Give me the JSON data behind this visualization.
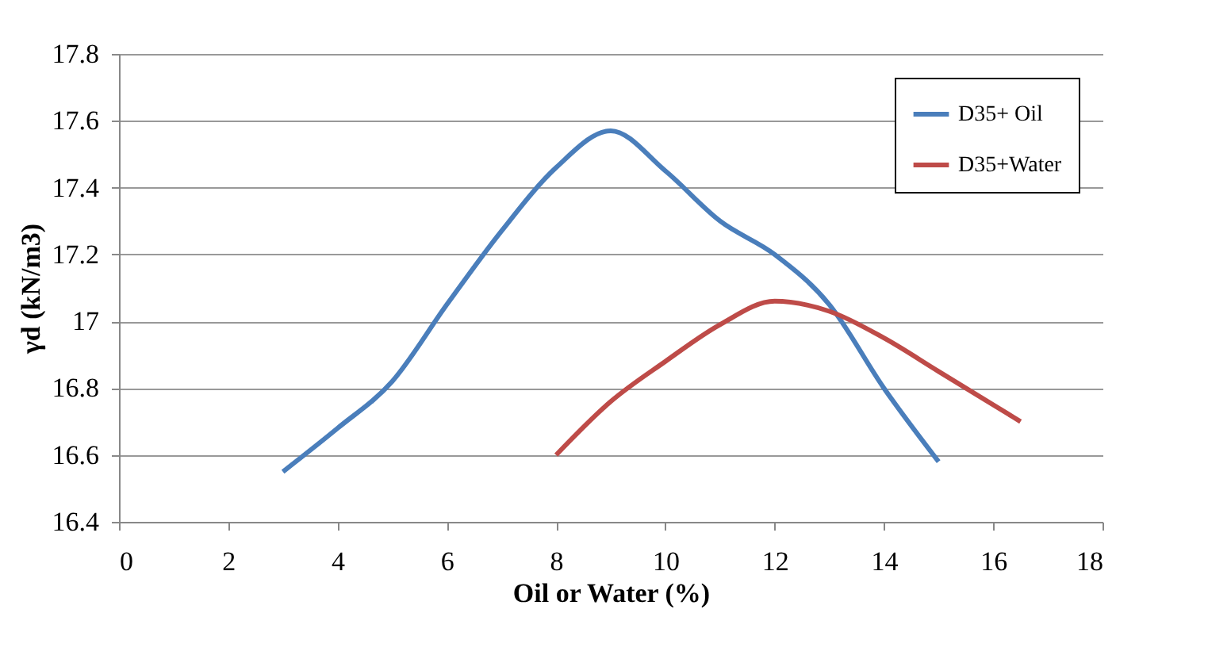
{
  "chart_data": {
    "type": "line",
    "xlabel": "Oil  or Water (%)",
    "ylabel": "γd (kN/m3)",
    "xlim": [
      0,
      18
    ],
    "xticks": [
      0,
      2,
      4,
      6,
      8,
      10,
      12,
      14,
      16,
      18
    ],
    "ylim": [
      16.4,
      17.8
    ],
    "yticks": [
      16.4,
      16.6,
      16.8,
      17,
      17.2,
      17.4,
      17.6,
      17.8
    ],
    "grid": "y",
    "legend": "top right",
    "marker": "none",
    "line_style": "solid",
    "series": [
      {
        "name": "D35+ Oil",
        "color": "#4a7ebb",
        "x": [
          3,
          4,
          5,
          6,
          7,
          8,
          9,
          10,
          11,
          12,
          13,
          14,
          15
        ],
        "values": [
          16.55,
          16.68,
          16.82,
          17.05,
          17.27,
          17.46,
          17.57,
          17.45,
          17.3,
          17.2,
          17.05,
          16.8,
          16.58
        ]
      },
      {
        "name": "D35+Water",
        "color": "#be4b48",
        "x": [
          8,
          9,
          10,
          11,
          12,
          13,
          14,
          15,
          16.5
        ],
        "values": [
          16.6,
          16.76,
          16.88,
          16.99,
          17.06,
          17.03,
          16.95,
          16.85,
          16.7
        ]
      }
    ]
  }
}
